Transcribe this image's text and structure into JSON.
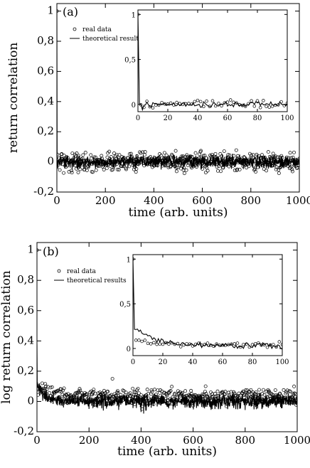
{
  "chart_data": [
    {
      "panel": "(a)",
      "type": "scatter",
      "xlabel": "time (arb. units)",
      "ylabel": "return correlation",
      "xlim": [
        0,
        1000
      ],
      "ylim": [
        -0.2,
        1.05
      ],
      "xticks": [
        "0",
        "200",
        "400",
        "600",
        "800",
        "1000"
      ],
      "yticks": [
        "-0,2",
        "0",
        "0,2",
        "0,4",
        "0,6",
        "0,8",
        "1"
      ],
      "xtick_values": [
        0,
        200,
        400,
        600,
        800,
        1000
      ],
      "ytick_values": [
        -0.2,
        0,
        0.2,
        0.4,
        0.6,
        0.8,
        1
      ],
      "legend": {
        "position": "inset top-left",
        "entries": [
          {
            "label": "real data",
            "marker": "circle"
          },
          {
            "label": "theoretical results",
            "marker": "line"
          }
        ]
      },
      "series": [
        {
          "name": "real data",
          "style": "circles",
          "x_start": 0,
          "x_end": 1000,
          "x_step": 2,
          "start_value": 1.0,
          "mean": 0.0,
          "spread": 0.03,
          "decay_amp": 0.0,
          "decay_tau": 1,
          "extremes": [
            [
              18,
              0.05
            ],
            [
              355,
              0.065
            ],
            [
              535,
              -0.055
            ],
            [
              905,
              -0.05
            ]
          ]
        },
        {
          "name": "theoretical results",
          "style": "line",
          "x_start": 0,
          "x_end": 1000,
          "x_step": 1,
          "start_value": 1.0,
          "mean": 0.0,
          "spread": 0.02,
          "decay_amp": 0.0,
          "decay_tau": 1,
          "extremes": []
        }
      ],
      "inset": {
        "xlim": [
          0,
          100
        ],
        "ylim": [
          -0.08,
          1.05
        ],
        "xticks": [
          "0",
          "20",
          "40",
          "60",
          "80",
          "100"
        ],
        "yticks": [
          "0",
          "0,5",
          "1"
        ],
        "xtick_values": [
          0,
          20,
          40,
          60,
          80,
          100
        ],
        "ytick_values": [
          0,
          0.5,
          1
        ],
        "series": [
          {
            "name": "real data",
            "style": "circles",
            "x_start": 0,
            "x_end": 100,
            "x_step": 2,
            "start_value": 1.0,
            "mean": 0.0,
            "spread": 0.02,
            "decay_amp": 0.0,
            "decay_tau": 1,
            "extremes": [
              [
                6,
                0.035
              ],
              [
                50,
                0.04
              ],
              [
                80,
                0.04
              ]
            ]
          },
          {
            "name": "theoretical results",
            "style": "line",
            "x_start": 0,
            "x_end": 100,
            "x_step": 1,
            "start_value": 1.0,
            "mean": 0.0,
            "spread": 0.015,
            "decay_amp": 0.0,
            "decay_tau": 1,
            "extremes": [
              [
                3,
                -0.06
              ]
            ]
          }
        ]
      }
    },
    {
      "panel": "(b)",
      "type": "scatter",
      "xlabel": "time (arb. units)",
      "ylabel": "log return correlation",
      "xlim": [
        0,
        1000
      ],
      "ylim": [
        -0.2,
        1.05
      ],
      "xticks": [
        "0",
        "200",
        "400",
        "600",
        "800",
        "1000"
      ],
      "yticks": [
        "-0,2",
        "0",
        "0,2",
        "0,4",
        "0,6",
        "0,8",
        "1"
      ],
      "xtick_values": [
        0,
        200,
        400,
        600,
        800,
        1000
      ],
      "ytick_values": [
        -0.2,
        0,
        0.2,
        0.4,
        0.6,
        0.8,
        1
      ],
      "legend": {
        "position": "inset top-left",
        "entries": [
          {
            "label": "real data",
            "marker": "circle"
          },
          {
            "label": "theoretical results",
            "marker": "line"
          }
        ]
      },
      "series": [
        {
          "name": "real data",
          "style": "circles",
          "x_start": 0,
          "x_end": 1000,
          "x_step": 2,
          "start_value": 1.0,
          "mean": 0.03,
          "spread": 0.025,
          "decay_amp": 0.05,
          "decay_tau": 60,
          "extremes": [
            [
              290,
              0.15
            ],
            [
              405,
              -0.05
            ]
          ]
        },
        {
          "name": "theoretical results",
          "style": "line",
          "x_start": 0,
          "x_end": 1000,
          "x_step": 1,
          "start_value": 0.38,
          "mean": 0.0,
          "spread": 0.022,
          "decay_amp": 0.1,
          "decay_tau": 35,
          "extremes": [
            [
              400,
              -0.07
            ],
            [
              410,
              -0.08
            ],
            [
              420,
              -0.06
            ]
          ]
        }
      ],
      "inset": {
        "xlim": [
          0,
          100
        ],
        "ylim": [
          -0.08,
          1.05
        ],
        "xticks": [
          "0",
          "20",
          "40",
          "60",
          "80",
          "100"
        ],
        "yticks": [
          "0",
          "0,5",
          "1"
        ],
        "xtick_values": [
          0,
          20,
          40,
          60,
          80,
          100
        ],
        "ytick_values": [
          0,
          0.5,
          1
        ],
        "series": [
          {
            "name": "real data",
            "style": "circles",
            "x_start": 0,
            "x_end": 100,
            "x_step": 2,
            "start_value": 1.0,
            "mean": 0.04,
            "spread": 0.015,
            "decay_amp": 0.1,
            "decay_tau": 8,
            "extremes": []
          },
          {
            "name": "theoretical results",
            "style": "line",
            "x_start": 0,
            "x_end": 100,
            "x_step": 1,
            "start_value": 1.0,
            "mean": 0.03,
            "spread": 0.015,
            "decay_amp": 0.22,
            "decay_tau": 14,
            "extremes": []
          }
        ]
      }
    }
  ]
}
